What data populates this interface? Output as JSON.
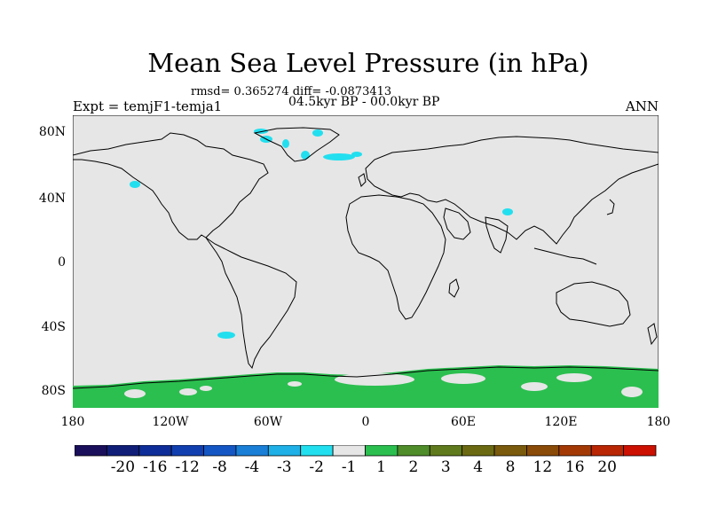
{
  "title": "Mean Sea Level Pressure (in hPa)",
  "stats": "rmsd= 0.365274 diff= -0.0873413",
  "period": "04.5kyr BP - 00.0kyr BP",
  "experiment": "Expt = temjF1-temja1",
  "season": "ANN",
  "lat_labels": [
    "80N",
    "40N",
    "0",
    "40S",
    "80S"
  ],
  "lon_labels": [
    "180",
    "120W",
    "60W",
    "0",
    "60E",
    "120E",
    "180"
  ],
  "colorbar": {
    "colors": [
      "#1a0f5a",
      "#101e78",
      "#0f2d98",
      "#123fb0",
      "#1457c4",
      "#1a7fd6",
      "#1eb0e6",
      "#22dfef",
      "#e6e6e6",
      "#2bbf4f",
      "#4f8c2a",
      "#5f7a1c",
      "#6b6a12",
      "#7a5a0c",
      "#8a4a08",
      "#a33a06",
      "#b82604",
      "#cc1002"
    ],
    "labels": [
      "-20",
      "-16",
      "-12",
      "-8",
      "-4",
      "-3",
      "-2",
      "-1",
      "1",
      "2",
      "3",
      "4",
      "8",
      "12",
      "16",
      "20"
    ]
  },
  "colors": {
    "land_sea_background": "#e6e6e6",
    "positive_anomaly": "#2bbf4f",
    "negative_anomaly": "#22dfef"
  }
}
